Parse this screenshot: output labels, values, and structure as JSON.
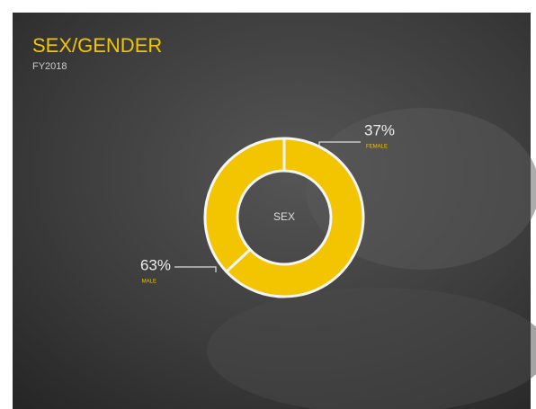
{
  "chart_data": {
    "type": "donut",
    "title": "SEX/GENDER",
    "subtitle": "FY2018",
    "center_label": "SEX",
    "categories": [
      "FEMALE",
      "MALE"
    ],
    "values": [
      37,
      63
    ],
    "value_labels": [
      "37%",
      "63%"
    ],
    "color": "#f2c500"
  }
}
